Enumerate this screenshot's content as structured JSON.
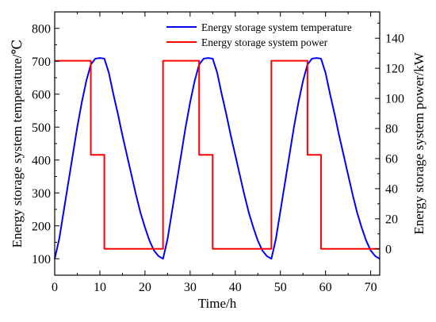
{
  "chart_data": {
    "type": "line",
    "title": "",
    "xlabel": "Time/h",
    "ylabel_left": "Energy storage system temperature/℃",
    "ylabel_right": "Energy storage system power/kW",
    "xlim": [
      0,
      72
    ],
    "ylim_left": [
      50,
      850
    ],
    "ylim_right": [
      -17.5,
      157.5
    ],
    "xticks": [
      0,
      10,
      20,
      30,
      40,
      50,
      60,
      70
    ],
    "yticks_left": [
      100,
      200,
      300,
      400,
      500,
      600,
      700,
      800
    ],
    "yticks_right": [
      0,
      20,
      40,
      60,
      80,
      100,
      120,
      140
    ],
    "grid": false,
    "legend_position": "top-right",
    "series": [
      {
        "name": "Energy storage system temperature",
        "axis": "left",
        "color": "#0000ff",
        "points": [
          [
            0,
            100
          ],
          [
            1,
            160
          ],
          [
            2,
            245
          ],
          [
            3,
            330
          ],
          [
            4,
            415
          ],
          [
            5,
            500
          ],
          [
            6,
            575
          ],
          [
            7,
            640
          ],
          [
            8,
            690
          ],
          [
            9,
            708
          ],
          [
            10,
            710
          ],
          [
            11,
            708
          ],
          [
            12,
            665
          ],
          [
            13,
            600
          ],
          [
            14,
            540
          ],
          [
            15,
            475
          ],
          [
            16,
            415
          ],
          [
            17,
            355
          ],
          [
            18,
            295
          ],
          [
            19,
            240
          ],
          [
            20,
            195
          ],
          [
            21,
            155
          ],
          [
            22,
            125
          ],
          [
            23,
            108
          ],
          [
            24,
            100
          ],
          [
            25,
            160
          ],
          [
            26,
            245
          ],
          [
            27,
            330
          ],
          [
            28,
            415
          ],
          [
            29,
            500
          ],
          [
            30,
            575
          ],
          [
            31,
            640
          ],
          [
            32,
            690
          ],
          [
            33,
            708
          ],
          [
            34,
            710
          ],
          [
            35,
            708
          ],
          [
            36,
            665
          ],
          [
            37,
            600
          ],
          [
            38,
            540
          ],
          [
            39,
            475
          ],
          [
            40,
            415
          ],
          [
            41,
            355
          ],
          [
            42,
            295
          ],
          [
            43,
            240
          ],
          [
            44,
            195
          ],
          [
            45,
            155
          ],
          [
            46,
            125
          ],
          [
            47,
            108
          ],
          [
            48,
            100
          ],
          [
            49,
            160
          ],
          [
            50,
            245
          ],
          [
            51,
            330
          ],
          [
            52,
            415
          ],
          [
            53,
            500
          ],
          [
            54,
            575
          ],
          [
            55,
            640
          ],
          [
            56,
            690
          ],
          [
            57,
            708
          ],
          [
            58,
            710
          ],
          [
            59,
            708
          ],
          [
            60,
            665
          ],
          [
            61,
            600
          ],
          [
            62,
            540
          ],
          [
            63,
            475
          ],
          [
            64,
            415
          ],
          [
            65,
            355
          ],
          [
            66,
            295
          ],
          [
            67,
            240
          ],
          [
            68,
            195
          ],
          [
            69,
            155
          ],
          [
            70,
            125
          ],
          [
            71,
            108
          ],
          [
            72,
            100
          ]
        ]
      },
      {
        "name": "Energy storage system power",
        "axis": "right",
        "color": "#ff0000",
        "points": [
          [
            0,
            125
          ],
          [
            8,
            125
          ],
          [
            8,
            62.5
          ],
          [
            11,
            62.5
          ],
          [
            11,
            0
          ],
          [
            24,
            0
          ],
          [
            24,
            125
          ],
          [
            32,
            125
          ],
          [
            32,
            62.5
          ],
          [
            35,
            62.5
          ],
          [
            35,
            0
          ],
          [
            48,
            0
          ],
          [
            48,
            125
          ],
          [
            56,
            125
          ],
          [
            56,
            62.5
          ],
          [
            59,
            62.5
          ],
          [
            59,
            0
          ],
          [
            72,
            0
          ]
        ]
      }
    ]
  }
}
